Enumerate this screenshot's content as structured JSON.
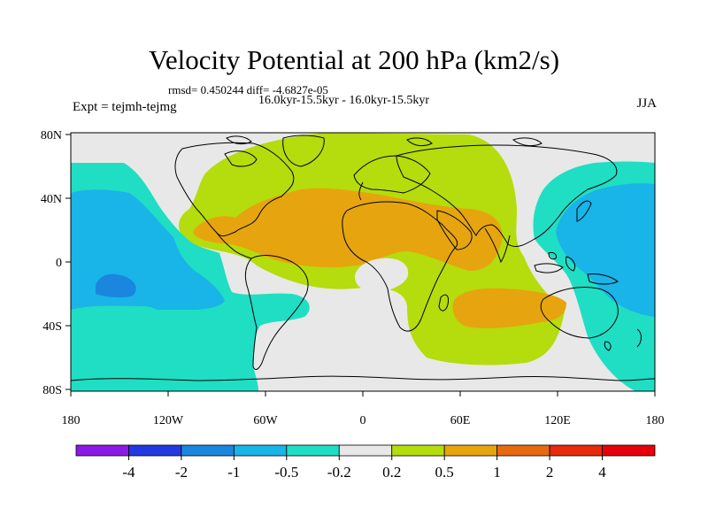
{
  "title": "Velocity Potential at 200 hPa (km2/s)",
  "subtitle_stats": "rmsd= 0.450244 diff= -4.6827e-05",
  "subtitle_period": "16.0kyr-15.5kyr - 16.0kyr-15.5kyr",
  "left_label": "Expt = tejmh-tejmg",
  "right_label": "JJA",
  "lat_ticks": [
    "80N",
    "40N",
    "0",
    "40S",
    "80S"
  ],
  "lon_ticks": [
    "180",
    "120W",
    "60W",
    "0",
    "60E",
    "120E",
    "180"
  ],
  "colorbar": {
    "labels": [
      "-4",
      "-2",
      "-1",
      "-0.5",
      "-0.2",
      "0.2",
      "0.5",
      "1",
      "2",
      "4"
    ],
    "colors": [
      "#8c1ae6",
      "#2238e0",
      "#1a86dd",
      "#19b4e8",
      "#1fdec4",
      "#e8e8e8",
      "#b5dc0c",
      "#e6a50f",
      "#e66a10",
      "#e62a0a",
      "#e6000b"
    ]
  },
  "map_colors": {
    "background": "#e8e8e8",
    "positive_low": "#b5dc0c",
    "positive_mid": "#e6a50f",
    "negative_low": "#1fdec4",
    "negative_mid": "#19b4e8",
    "negative_high": "#1a86dd"
  }
}
